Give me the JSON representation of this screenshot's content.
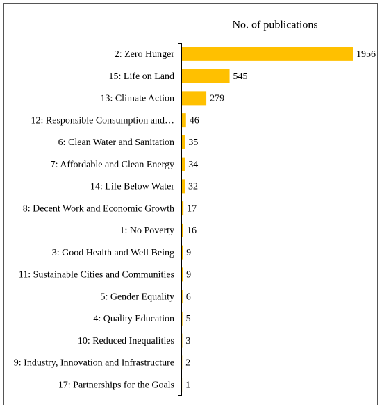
{
  "chart_data": {
    "type": "bar",
    "orientation": "horizontal",
    "title": "No. of publications",
    "categories": [
      "2: Zero Hunger",
      "15: Life on Land",
      "13: Climate Action",
      "12: Responsible Consumption and…",
      "6: Clean Water and Sanitation",
      "7: Affordable and Clean Energy",
      "14: Life Below Water",
      "8: Decent Work and Economic Growth",
      "1: No Poverty",
      "3: Good Health and Well Being",
      "11: Sustainable Cities and Communities",
      "5: Gender Equality",
      "4: Quality Education",
      "10: Reduced Inequalities",
      "9: Industry, Innovation and Infrastructure",
      "17: Partnerships for the Goals"
    ],
    "values": [
      1956,
      545,
      279,
      46,
      35,
      34,
      32,
      17,
      16,
      9,
      9,
      6,
      5,
      3,
      2,
      1
    ],
    "color": "#ffc000"
  }
}
